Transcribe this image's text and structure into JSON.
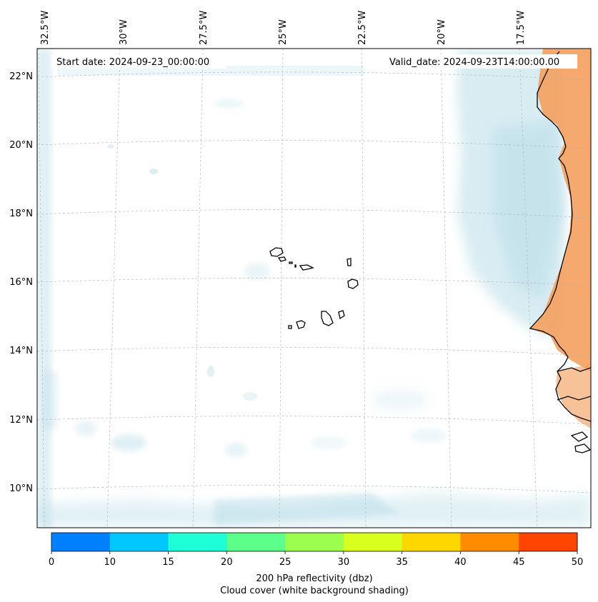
{
  "map": {
    "start_date": "Start date: 2024-09-23_00:00:00",
    "valid_date": "Valid_date: 2024-09-23T14:00:00.00",
    "lon_labels": [
      "32.5°W",
      "30°W",
      "27.5°W",
      "25°W",
      "22.5°W",
      "20°W",
      "17.5°W"
    ],
    "lat_labels": [
      "22°N",
      "20°N",
      "18°N",
      "16°N",
      "14°N",
      "12°N",
      "10°N"
    ]
  },
  "colorbar": {
    "ticks": [
      "0",
      "10",
      "15",
      "20",
      "25",
      "30",
      "35",
      "40",
      "45",
      "50"
    ],
    "colors": [
      "#0080ff",
      "#00c8ff",
      "#1effd8",
      "#5cff8a",
      "#9cff50",
      "#d8ff1e",
      "#ffd700",
      "#ff8c00",
      "#ff4500"
    ],
    "label_line1": "200 hPa reflectivity (dbz)",
    "label_line2": "Cloud cover (white background shading)"
  },
  "colors": {
    "cloud": "#b9dde8",
    "land_reflectivity": "#f4a262",
    "coast": "#000000",
    "grid": "#b0b0b0"
  }
}
